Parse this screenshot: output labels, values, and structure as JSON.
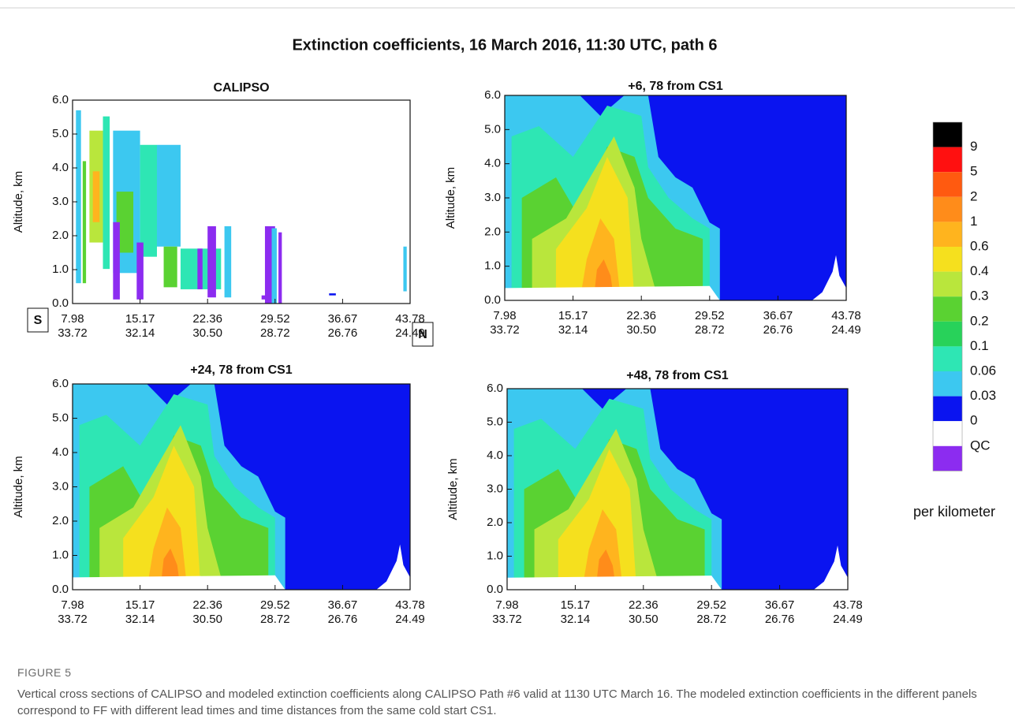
{
  "figure": {
    "title": "Extinction coefficients, 16 March 2016, 11:30 UTC, path 6",
    "panels": [
      {
        "title": "CALIPSO",
        "y_label": "Altitude, km",
        "yticks": [
          {
            "value": 0,
            "label": "0.0"
          },
          {
            "value": 1,
            "label": "1.0"
          },
          {
            "value": 2,
            "label": "2.0"
          },
          {
            "value": 3,
            "label": "3.0"
          },
          {
            "value": 4,
            "label": "4.0"
          },
          {
            "value": 5,
            "label": "5.0"
          },
          {
            "value": 6,
            "label": "6.0"
          }
        ],
        "xticks_top": [
          "7.98",
          "15.17",
          "22.36",
          "29.52",
          "36.67",
          "43.78"
        ],
        "xticks_bottom": [
          "33.72",
          "32.14",
          "30.50",
          "28.72",
          "26.76",
          "24.49"
        ]
      },
      {
        "title": "+6, 78 from CS1",
        "y_label": "Altitude, km",
        "yticks": [
          {
            "value": 0,
            "label": "0.0"
          },
          {
            "value": 1,
            "label": "1.0"
          },
          {
            "value": 2,
            "label": "2.0"
          },
          {
            "value": 3,
            "label": "3.0"
          },
          {
            "value": 4,
            "label": "4.0"
          },
          {
            "value": 5,
            "label": "5.0"
          },
          {
            "value": 6,
            "label": "6.0"
          }
        ],
        "xticks_top": [
          "7.98",
          "15.17",
          "22.36",
          "29.52",
          "36.67",
          "43.78"
        ],
        "xticks_bottom": [
          "33.72",
          "32.14",
          "30.50",
          "28.72",
          "26.76",
          "24.49"
        ]
      },
      {
        "title": "+24, 78 from CS1",
        "y_label": "Altitude, km",
        "yticks": [
          {
            "value": 0,
            "label": "0.0"
          },
          {
            "value": 1,
            "label": "1.0"
          },
          {
            "value": 2,
            "label": "2.0"
          },
          {
            "value": 3,
            "label": "3.0"
          },
          {
            "value": 4,
            "label": "4.0"
          },
          {
            "value": 5,
            "label": "5.0"
          },
          {
            "value": 6,
            "label": "6.0"
          }
        ],
        "xticks_top": [
          "7.98",
          "15.17",
          "22.36",
          "29.52",
          "36.67",
          "43.78"
        ],
        "xticks_bottom": [
          "33.72",
          "32.14",
          "30.50",
          "28.72",
          "26.76",
          "24.49"
        ]
      },
      {
        "title": "+48, 78 from CS1",
        "y_label": "Altitude, km",
        "yticks": [
          {
            "value": 0,
            "label": "0.0"
          },
          {
            "value": 1,
            "label": "1.0"
          },
          {
            "value": 2,
            "label": "2.0"
          },
          {
            "value": 3,
            "label": "3.0"
          },
          {
            "value": 4,
            "label": "4.0"
          },
          {
            "value": 5,
            "label": "5.0"
          },
          {
            "value": 6,
            "label": "6.0"
          }
        ],
        "xticks_top": [
          "7.98",
          "15.17",
          "22.36",
          "29.52",
          "36.67",
          "43.78"
        ],
        "xticks_bottom": [
          "33.72",
          "32.14",
          "30.50",
          "28.72",
          "26.76",
          "24.49"
        ]
      }
    ],
    "direction": {
      "south": "S",
      "north": "N"
    },
    "colorbar": {
      "labels": [
        "9",
        "5",
        "2",
        "1",
        "0.6",
        "0.4",
        "0.3",
        "0.2",
        "0.1",
        "0.06",
        "0.03",
        "0",
        "QC"
      ],
      "colors": [
        "#000000",
        "#ff1010",
        "#ff5a10",
        "#ff8c1a",
        "#ffb41e",
        "#f5e01e",
        "#b9e63c",
        "#5ad232",
        "#28d25a",
        "#2ee6b4",
        "#3cc8f0",
        "#0a14f0",
        "#ffffff",
        "#8c2cf0"
      ],
      "unit": "per kilometer"
    }
  },
  "caption": {
    "label": "FIGURE 5",
    "text": "Vertical cross sections of CALIPSO and modeled extinction coefficients along CALIPSO Path #6 valid at 1130 UTC March 16. The modeled extinction coefficients in the different panels correspond to FF with different lead times and time distances from the same cold start CS1."
  }
}
